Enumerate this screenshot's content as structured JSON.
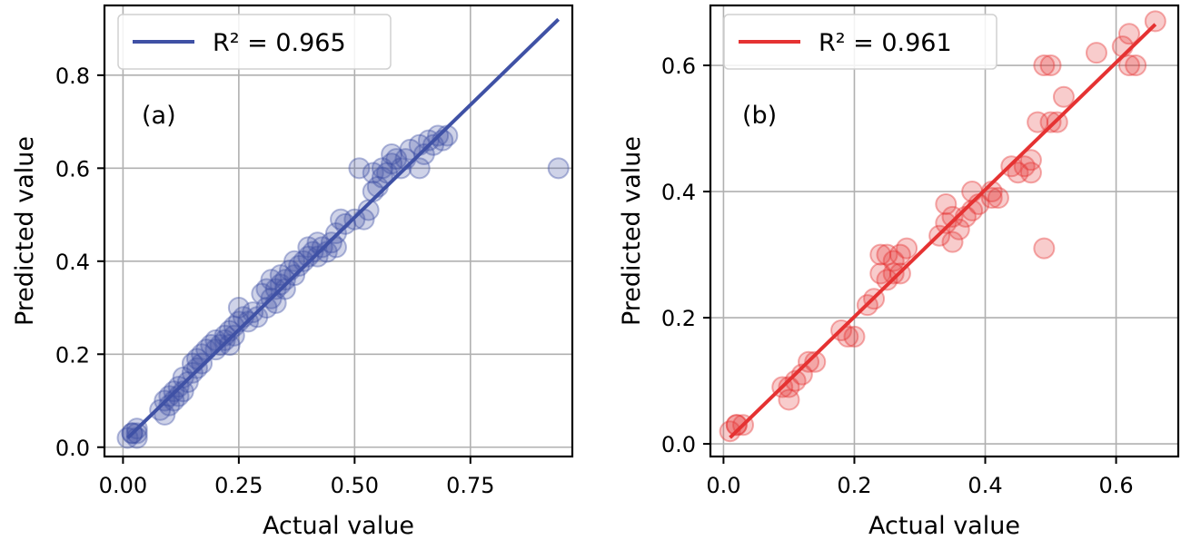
{
  "chart_data": [
    {
      "type": "scatter",
      "panel_label": "(a)",
      "xlabel": "Actual value",
      "ylabel": "Predicted value",
      "xlim": [
        -0.04,
        0.97
      ],
      "ylim": [
        -0.02,
        0.95
      ],
      "xticks": [
        0.0,
        0.25,
        0.5,
        0.75
      ],
      "xtick_labels": [
        "0.00",
        "0.25",
        "0.50",
        "0.75"
      ],
      "yticks": [
        0.0,
        0.2,
        0.4,
        0.6,
        0.8
      ],
      "ytick_labels": [
        "0.0",
        "0.2",
        "0.4",
        "0.6",
        "0.8"
      ],
      "grid": true,
      "legend": {
        "label": "R² = 0.965",
        "position": "top-left"
      },
      "color": "#3f51a5",
      "fit_line": {
        "x": [
          0.01,
          0.94
        ],
        "y": [
          0.02,
          0.92
        ]
      },
      "series": [
        {
          "name": "points",
          "x": [
            0.01,
            0.02,
            0.02,
            0.03,
            0.03,
            0.03,
            0.08,
            0.09,
            0.09,
            0.1,
            0.1,
            0.11,
            0.11,
            0.12,
            0.12,
            0.13,
            0.13,
            0.14,
            0.15,
            0.15,
            0.16,
            0.16,
            0.17,
            0.17,
            0.18,
            0.19,
            0.2,
            0.2,
            0.21,
            0.22,
            0.22,
            0.23,
            0.23,
            0.24,
            0.24,
            0.25,
            0.25,
            0.26,
            0.27,
            0.28,
            0.29,
            0.3,
            0.31,
            0.31,
            0.32,
            0.32,
            0.33,
            0.33,
            0.34,
            0.34,
            0.35,
            0.35,
            0.36,
            0.37,
            0.37,
            0.38,
            0.39,
            0.4,
            0.4,
            0.41,
            0.42,
            0.42,
            0.43,
            0.44,
            0.45,
            0.46,
            0.46,
            0.47,
            0.48,
            0.5,
            0.51,
            0.52,
            0.53,
            0.54,
            0.54,
            0.55,
            0.56,
            0.56,
            0.57,
            0.58,
            0.58,
            0.59,
            0.6,
            0.61,
            0.62,
            0.64,
            0.64,
            0.65,
            0.66,
            0.67,
            0.68,
            0.69,
            0.7,
            0.94
          ],
          "y": [
            0.02,
            0.03,
            0.03,
            0.03,
            0.02,
            0.04,
            0.08,
            0.07,
            0.1,
            0.11,
            0.09,
            0.1,
            0.12,
            0.11,
            0.13,
            0.12,
            0.15,
            0.14,
            0.16,
            0.18,
            0.17,
            0.19,
            0.18,
            0.2,
            0.21,
            0.22,
            0.21,
            0.23,
            0.22,
            0.23,
            0.24,
            0.25,
            0.22,
            0.26,
            0.24,
            0.3,
            0.27,
            0.28,
            0.27,
            0.29,
            0.28,
            0.33,
            0.3,
            0.34,
            0.32,
            0.36,
            0.34,
            0.31,
            0.35,
            0.37,
            0.36,
            0.34,
            0.38,
            0.37,
            0.4,
            0.39,
            0.4,
            0.41,
            0.43,
            0.42,
            0.41,
            0.44,
            0.43,
            0.42,
            0.44,
            0.43,
            0.46,
            0.49,
            0.48,
            0.49,
            0.6,
            0.49,
            0.51,
            0.55,
            0.59,
            0.56,
            0.58,
            0.6,
            0.59,
            0.61,
            0.63,
            0.62,
            0.6,
            0.62,
            0.64,
            0.6,
            0.65,
            0.63,
            0.66,
            0.65,
            0.67,
            0.66,
            0.67,
            0.6
          ]
        }
      ]
    },
    {
      "type": "scatter",
      "panel_label": "(b)",
      "xlabel": "Actual value",
      "ylabel": "Predicted value",
      "xlim": [
        -0.02,
        0.695
      ],
      "ylim": [
        -0.02,
        0.695
      ],
      "xticks": [
        0.0,
        0.2,
        0.4,
        0.6
      ],
      "xtick_labels": [
        "0.0",
        "0.2",
        "0.4",
        "0.6"
      ],
      "yticks": [
        0.0,
        0.2,
        0.4,
        0.6
      ],
      "ytick_labels": [
        "0.0",
        "0.2",
        "0.4",
        "0.6"
      ],
      "grid": true,
      "legend": {
        "label": "R² = 0.961",
        "position": "top-left"
      },
      "color": "#e53232",
      "fit_line": {
        "x": [
          0.01,
          0.66
        ],
        "y": [
          0.01,
          0.665
        ]
      },
      "series": [
        {
          "name": "points",
          "x": [
            0.01,
            0.02,
            0.02,
            0.03,
            0.09,
            0.1,
            0.1,
            0.11,
            0.12,
            0.13,
            0.14,
            0.18,
            0.19,
            0.2,
            0.22,
            0.23,
            0.24,
            0.24,
            0.25,
            0.25,
            0.26,
            0.26,
            0.27,
            0.27,
            0.28,
            0.33,
            0.34,
            0.34,
            0.35,
            0.35,
            0.36,
            0.37,
            0.38,
            0.38,
            0.39,
            0.41,
            0.41,
            0.42,
            0.44,
            0.45,
            0.46,
            0.47,
            0.47,
            0.48,
            0.49,
            0.49,
            0.5,
            0.5,
            0.51,
            0.52,
            0.57,
            0.61,
            0.62,
            0.62,
            0.63,
            0.66
          ],
          "y": [
            0.02,
            0.03,
            0.03,
            0.03,
            0.09,
            0.07,
            0.09,
            0.1,
            0.11,
            0.13,
            0.13,
            0.18,
            0.17,
            0.17,
            0.22,
            0.23,
            0.27,
            0.3,
            0.26,
            0.3,
            0.27,
            0.29,
            0.3,
            0.27,
            0.31,
            0.33,
            0.35,
            0.38,
            0.32,
            0.36,
            0.34,
            0.36,
            0.37,
            0.4,
            0.38,
            0.39,
            0.4,
            0.39,
            0.44,
            0.43,
            0.44,
            0.43,
            0.45,
            0.51,
            0.6,
            0.31,
            0.51,
            0.6,
            0.51,
            0.55,
            0.62,
            0.63,
            0.65,
            0.6,
            0.6,
            0.67
          ]
        }
      ]
    }
  ]
}
